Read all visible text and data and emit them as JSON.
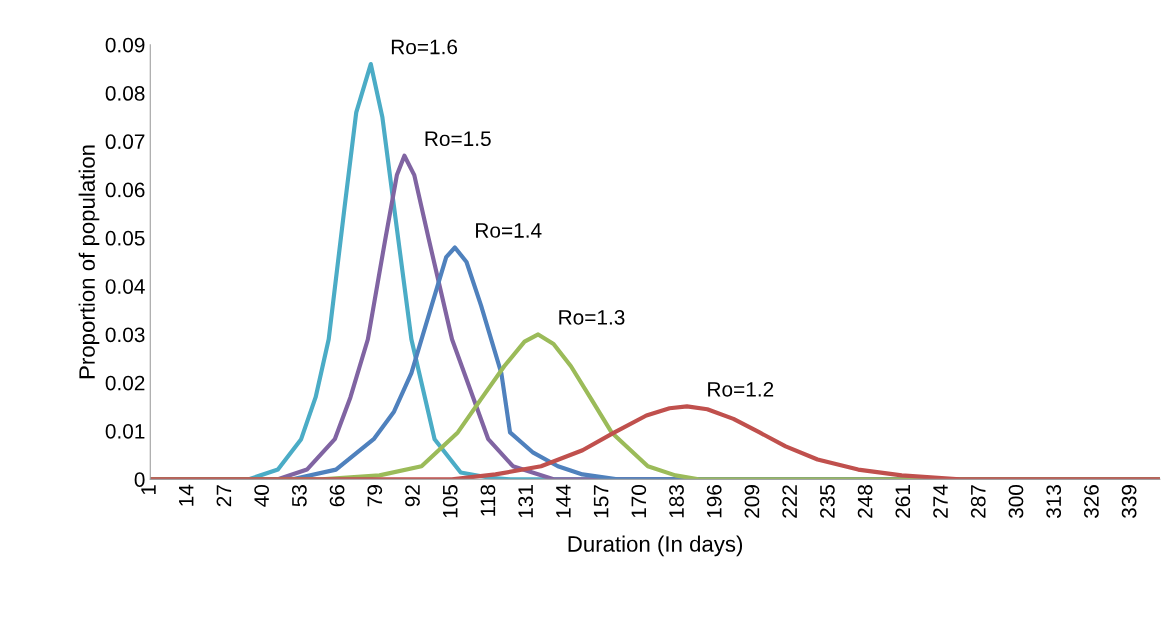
{
  "chart_data": {
    "type": "line",
    "xlabel": "Duration (In days)",
    "ylabel": "Proportion of population",
    "xlim": [
      1,
      349
    ],
    "xticks": [
      1,
      14,
      27,
      40,
      53,
      66,
      79,
      92,
      105,
      118,
      131,
      144,
      157,
      170,
      183,
      196,
      209,
      222,
      235,
      248,
      261,
      274,
      287,
      300,
      313,
      326,
      339
    ],
    "ylim": [
      0,
      0.09
    ],
    "yticks": [
      0,
      0.01,
      0.02,
      0.03,
      0.04,
      0.05,
      0.06,
      0.07,
      0.08,
      0.09
    ],
    "grid": false,
    "legend": false,
    "marker": "none",
    "line_style": "solid",
    "series": [
      {
        "name": "Ro=1.6",
        "color": "#4bacc6",
        "x": [
          1,
          35,
          45,
          53,
          58,
          62.5,
          68,
          72,
          77,
          81,
          85,
          91,
          99,
          108,
          118,
          125,
          349
        ],
        "values": [
          0,
          0,
          0.002,
          0.0083,
          0.017,
          0.029,
          0.0565,
          0.076,
          0.086,
          0.075,
          0.0565,
          0.029,
          0.0083,
          0.0014,
          0.0003,
          0,
          0
        ]
      },
      {
        "name": "Ro=1.5",
        "color": "#8064a2",
        "x": [
          1,
          45,
          55,
          64.6,
          70,
          76,
          82,
          86,
          88.6,
          92,
          97,
          105,
          117.5,
          126,
          140,
          349
        ],
        "values": [
          0,
          0,
          0.002,
          0.0083,
          0.017,
          0.029,
          0.0497,
          0.063,
          0.067,
          0.063,
          0.0497,
          0.029,
          0.0083,
          0.0027,
          0,
          0
        ]
      },
      {
        "name": "Ro=1.4",
        "color": "#4f81bd",
        "x": [
          1,
          50,
          65,
          78,
          85,
          91,
          98,
          103,
          106,
          110,
          115,
          122,
          125,
          133,
          141.5,
          150,
          162,
          349
        ],
        "values": [
          0,
          0,
          0.002,
          0.0083,
          0.014,
          0.022,
          0.036,
          0.046,
          0.048,
          0.045,
          0.036,
          0.022,
          0.0097,
          0.0055,
          0.0027,
          0.001,
          0,
          0
        ]
      },
      {
        "name": "Ro=1.3",
        "color": "#9bbb59",
        "x": [
          1,
          60,
          80,
          94.5,
          107,
          115,
          123,
          130,
          134.7,
          140,
          146,
          153,
          160,
          172.5,
          182,
          190,
          349
        ],
        "values": [
          0,
          0,
          0.0008,
          0.0027,
          0.0097,
          0.0166,
          0.0234,
          0.0285,
          0.03,
          0.028,
          0.0234,
          0.0166,
          0.0097,
          0.0027,
          0.0008,
          0,
          0
        ]
      },
      {
        "name": "Ro=1.2",
        "color": "#c0504d",
        "x": [
          1,
          105,
          120,
          135.7,
          150,
          161,
          172,
          180,
          186,
          193,
          202,
          211,
          220,
          231,
          245,
          260,
          280,
          349
        ],
        "values": [
          0,
          0,
          0.001,
          0.0027,
          0.006,
          0.0097,
          0.0132,
          0.0147,
          0.0151,
          0.0145,
          0.0125,
          0.0097,
          0.0068,
          0.0041,
          0.002,
          0.0008,
          0,
          0
        ]
      }
    ]
  }
}
